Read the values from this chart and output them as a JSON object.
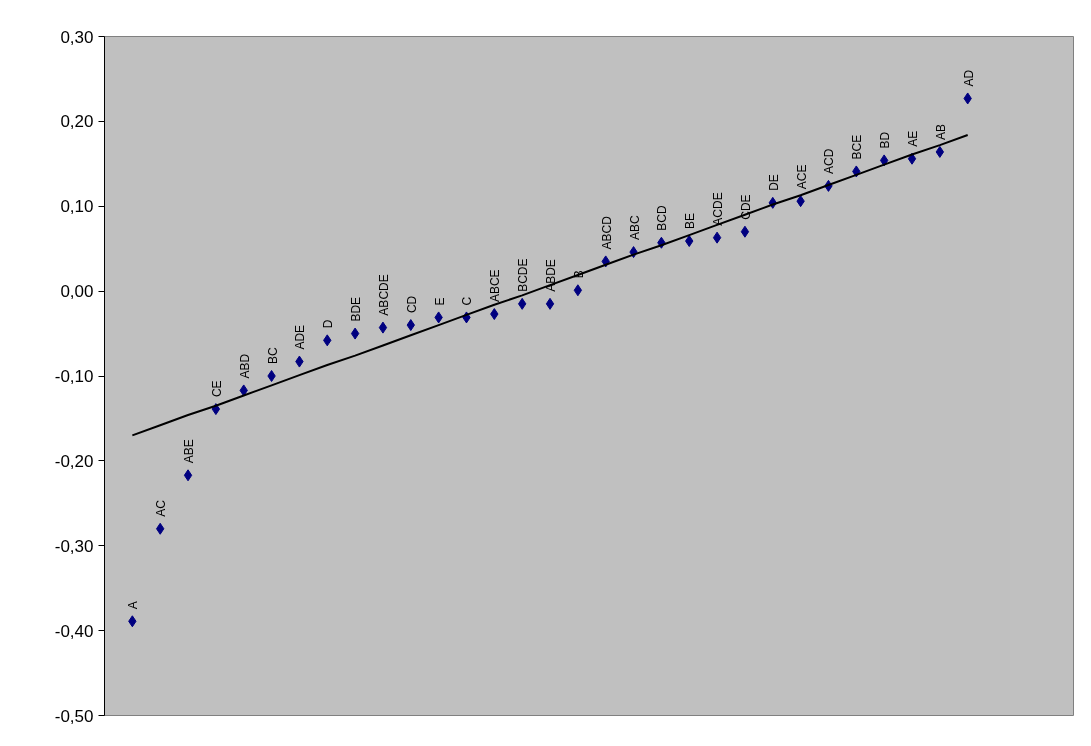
{
  "chart_data": {
    "type": "scatter",
    "categories": [
      "A",
      "AC",
      "ABE",
      "CE",
      "ABD",
      "BC",
      "ADE",
      "D",
      "BDE",
      "ABCDE",
      "CD",
      "E",
      "C",
      "ABCE",
      "BCDE",
      "ABDE",
      "B",
      "ABCD",
      "ABC",
      "BCD",
      "BE",
      "ACDE",
      "CDE",
      "DE",
      "ACE",
      "ACD",
      "BCE",
      "BD",
      "AE",
      "AB",
      "AD"
    ],
    "series": [
      {
        "color": "#000080",
        "values": [
          -0.389,
          -0.28,
          -0.217,
          -0.139,
          -0.117,
          -0.1,
          -0.083,
          -0.058,
          -0.05,
          -0.043,
          -0.04,
          -0.031,
          -0.031,
          -0.027,
          -0.015,
          -0.015,
          0.001,
          0.035,
          0.046,
          0.057,
          0.059,
          0.063,
          0.07,
          0.104,
          0.106,
          0.124,
          0.141,
          0.154,
          0.156,
          0.164,
          0.227
        ]
      },
      {
        "type": "line",
        "color": "#000000",
        "marker": "none",
        "values": [
          -0.17,
          -0.158,
          -0.146,
          -0.135,
          -0.123,
          -0.111,
          -0.099,
          -0.087,
          -0.076,
          -0.064,
          -0.052,
          -0.04,
          -0.028,
          -0.016,
          -0.005,
          0.007,
          0.019,
          0.031,
          0.043,
          0.054,
          0.066,
          0.078,
          0.09,
          0.102,
          0.113,
          0.125,
          0.137,
          0.149,
          0.161,
          0.172,
          0.184
        ]
      }
    ],
    "ylim": [
      -0.5,
      0.3
    ],
    "yticks": [
      {
        "value": 0.3,
        "label": "0,30"
      },
      {
        "value": 0.2,
        "label": "0,20"
      },
      {
        "value": 0.1,
        "label": "0,10"
      },
      {
        "value": 0.0,
        "label": "0,00"
      },
      {
        "value": -0.1,
        "label": "-0,10"
      },
      {
        "value": -0.2,
        "label": "-0,20"
      },
      {
        "value": -0.3,
        "label": "-0,30"
      },
      {
        "value": -0.4,
        "label": "-0,40"
      },
      {
        "value": -0.5,
        "label": "-0,50"
      }
    ],
    "tick_labels": "y",
    "marker": "diamond",
    "grid": false,
    "line_style": "solid"
  }
}
